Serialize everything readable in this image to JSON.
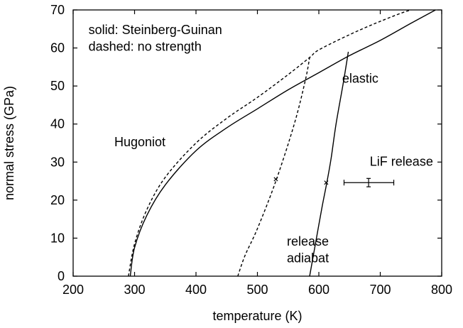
{
  "chart_data": {
    "type": "line",
    "title": "",
    "xlabel": "temperature (K)",
    "ylabel": "normal stress (GPa)",
    "xlim": [
      200,
      800
    ],
    "ylim": [
      0,
      70
    ],
    "xticks": [
      "200",
      "300",
      "400",
      "500",
      "600",
      "700",
      "800"
    ],
    "yticks": [
      "0",
      "10",
      "20",
      "30",
      "40",
      "50",
      "60",
      "70"
    ],
    "grid": false,
    "legend": "none",
    "annotations": [
      {
        "text": "solid: Steinberg-Guinan",
        "x": 225,
        "y": 63.7
      },
      {
        "text": "dashed: no strength",
        "x": 225,
        "y": 59.3
      },
      {
        "text": "Hugoniot",
        "x": 267,
        "y": 34.2
      },
      {
        "text": "elastic",
        "x": 638,
        "y": 50.9
      },
      {
        "text": "LiF release",
        "x": 683,
        "y": 29.0
      },
      {
        "text": "release",
        "x": 548,
        "y": 8.0
      },
      {
        "text": "adiabat",
        "x": 548,
        "y": 3.6
      }
    ],
    "series": [
      {
        "style": "solid",
        "x": [
          293,
          300,
          320,
          350,
          400,
          450,
          500,
          550,
          600,
          650,
          700,
          750,
          790
        ],
        "y": [
          0,
          7.5,
          16,
          24,
          33,
          39,
          44,
          49,
          53.5,
          58,
          62,
          66.5,
          70
        ]
      },
      {
        "style": "dashed",
        "x": [
          290,
          300,
          320,
          350,
          400,
          450,
          500,
          550,
          585,
          600,
          650,
          700,
          750,
          772
        ],
        "y": [
          0,
          8.5,
          17.5,
          26,
          35,
          41.5,
          47,
          53,
          57.5,
          59.5,
          63.5,
          67,
          70,
          70
        ]
      },
      {
        "style": "dashed",
        "x": [
          468,
          480,
          500,
          530,
          560,
          578,
          585
        ],
        "y": [
          0,
          5.5,
          12.5,
          25,
          40,
          51.5,
          57.5
        ]
      },
      {
        "style": "solid",
        "x": [
          585,
          595,
          605,
          613,
          620,
          628,
          640,
          648
        ],
        "y": [
          0,
          9,
          18,
          24.6,
          31,
          40,
          51,
          59
        ]
      }
    ],
    "markers": [
      {
        "x": 530,
        "y": 25.5
      },
      {
        "x": 612,
        "y": 24.6
      }
    ],
    "errorbar": {
      "x": 681,
      "y": 24.6,
      "xerr_low": 641,
      "xerr_high": 722,
      "yerr_low": 23.5,
      "yerr_high": 25.7
    }
  }
}
